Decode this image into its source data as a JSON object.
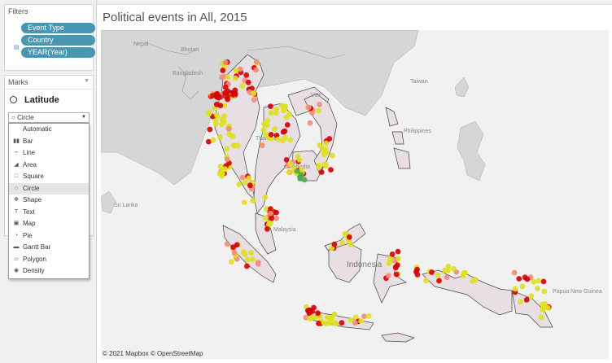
{
  "filters": {
    "title": "Filters",
    "pills": [
      "Event Type",
      "Country",
      "YEAR(Year)"
    ]
  },
  "marks": {
    "title": "Marks",
    "field": "Latitude",
    "select_value": "Circle",
    "menu": [
      "Automatic",
      "Bar",
      "Line",
      "Area",
      "Square",
      "Circle",
      "Shape",
      "Text",
      "Map",
      "Pie",
      "Gantt Bar",
      "Polygon",
      "Density"
    ],
    "menu_icons": [
      "",
      "bar-chart-icon",
      "line-chart-icon",
      "area-chart-icon",
      "square-icon",
      "circle-icon",
      "shape-icon",
      "text-icon",
      "map-icon",
      "pie-icon",
      "gantt-bar-icon",
      "polygon-icon",
      "density-icon"
    ],
    "selected": "Circle"
  },
  "view": {
    "title": "Political events in All, 2015",
    "attribution": "© 2021 Mapbox © OpenStreetMap"
  },
  "map": {
    "labels": [
      "Nepal",
      "Bhutan",
      "Bangladesh",
      "Taiwan",
      "Philippines",
      "Thailand",
      "Cambodia",
      "Viet",
      "Sri Lanka",
      "Malaysia",
      "Indonesia",
      "Papua New Guinea"
    ],
    "colors": {
      "red": "#d40000",
      "orange": "#f28c7a",
      "yellow": "#dfe020",
      "green": "#4aa84a",
      "land": "#e7dfe4",
      "border": "#444444"
    }
  }
}
